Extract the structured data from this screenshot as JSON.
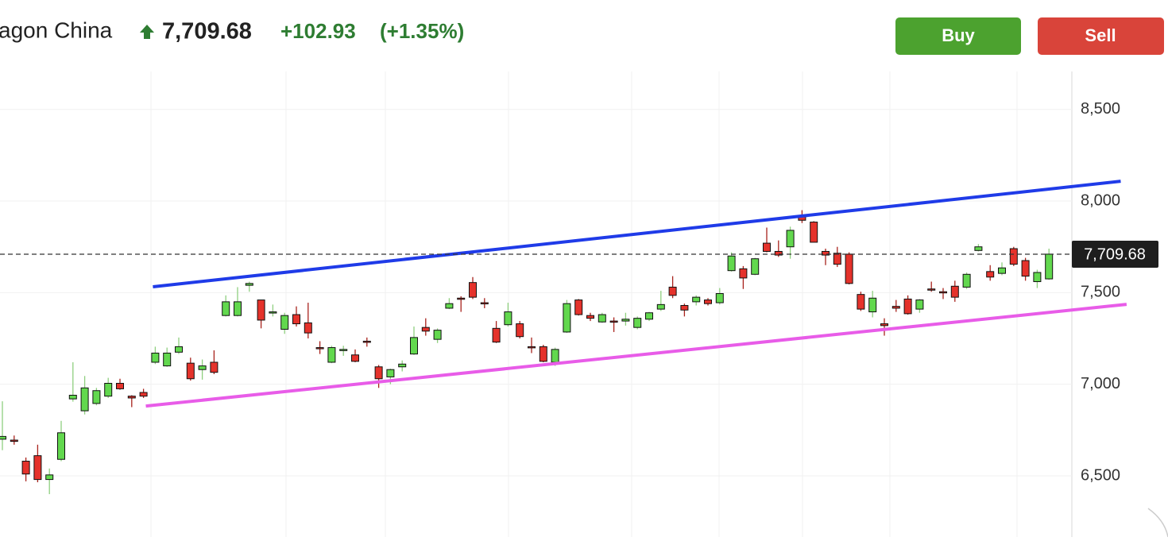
{
  "header": {
    "name": "agon China",
    "change": "+102.93",
    "change_pct": "(+1.35%)",
    "buy": "Buy",
    "sell": "Sell"
  },
  "chart_data": {
    "type": "candlestick",
    "up_color": "#62d84e",
    "down_color": "#e5322b",
    "open": [
      6700,
      6695,
      6580,
      6610,
      6480,
      6590,
      6920,
      6855,
      6895,
      6935,
      7005,
      6935,
      6955,
      7120,
      7100,
      7175,
      7115,
      7080,
      7120,
      7375,
      7375,
      7540,
      7460,
      7390,
      7300,
      7380,
      7335,
      7200,
      7120,
      7185,
      7160,
      7235,
      7095,
      7040,
      7095,
      7165,
      7310,
      7245,
      7415,
      7470,
      7555,
      7445,
      7305,
      7325,
      7330,
      7205,
      7205,
      7120,
      7285,
      7460,
      7375,
      7340,
      7345,
      7345,
      7310,
      7355,
      7410,
      7530,
      7430,
      7450,
      7460,
      7445,
      7620,
      7630,
      7600,
      7770,
      7725,
      7750,
      7915,
      7885,
      7725,
      7715,
      7710,
      7490,
      7395,
      7330,
      7425,
      7465,
      7410,
      7520,
      7505,
      7535,
      7530,
      7730,
      7615,
      7605,
      7740,
      7675,
      7560,
      7575
    ],
    "close": [
      6715,
      6688,
      6510,
      6480,
      6505,
      6735,
      6940,
      6980,
      6965,
      7005,
      6975,
      6925,
      6935,
      7170,
      7170,
      7205,
      7030,
      7100,
      7065,
      7450,
      7450,
      7550,
      7350,
      7395,
      7375,
      7330,
      7280,
      7195,
      7200,
      7190,
      7125,
      7230,
      7030,
      7080,
      7110,
      7255,
      7290,
      7295,
      7440,
      7465,
      7475,
      7440,
      7230,
      7395,
      7260,
      7200,
      7125,
      7190,
      7440,
      7380,
      7360,
      7380,
      7340,
      7355,
      7360,
      7390,
      7435,
      7485,
      7405,
      7475,
      7440,
      7495,
      7700,
      7580,
      7685,
      7725,
      7705,
      7840,
      7895,
      7775,
      7705,
      7655,
      7550,
      7410,
      7470,
      7320,
      7415,
      7385,
      7460,
      7515,
      7500,
      7475,
      7600,
      7750,
      7585,
      7635,
      7655,
      7590,
      7610,
      7710
    ],
    "high": [
      6907,
      6720,
      6600,
      6670,
      6540,
      6800,
      7120,
      7045,
      6980,
      7035,
      7030,
      6940,
      6975,
      7205,
      7200,
      7255,
      7145,
      7135,
      7185,
      7485,
      7530,
      7560,
      7460,
      7435,
      7390,
      7425,
      7445,
      7235,
      7210,
      7210,
      7190,
      7255,
      7105,
      7085,
      7130,
      7315,
      7360,
      7305,
      7470,
      7480,
      7585,
      7470,
      7345,
      7445,
      7345,
      7255,
      7215,
      7200,
      7460,
      7465,
      7390,
      7390,
      7365,
      7390,
      7370,
      7395,
      7510,
      7590,
      7440,
      7485,
      7470,
      7525,
      7720,
      7645,
      7690,
      7855,
      7785,
      7860,
      7950,
      7890,
      7740,
      7750,
      7720,
      7505,
      7510,
      7360,
      7460,
      7485,
      7465,
      7560,
      7525,
      7565,
      7610,
      7765,
      7650,
      7665,
      7750,
      7690,
      7625,
      7740
    ],
    "low": [
      6640,
      6670,
      6470,
      6465,
      6400,
      6580,
      6905,
      6835,
      6885,
      6925,
      6970,
      6875,
      6925,
      7110,
      7095,
      7165,
      7020,
      7025,
      7055,
      7370,
      7370,
      7505,
      7305,
      7370,
      7275,
      7315,
      7250,
      7165,
      7115,
      7155,
      7120,
      7205,
      6980,
      7000,
      7070,
      7160,
      7265,
      7225,
      7410,
      7395,
      7465,
      7415,
      7225,
      7315,
      7250,
      7170,
      7120,
      7100,
      7280,
      7375,
      7345,
      7335,
      7285,
      7320,
      7300,
      7345,
      7400,
      7470,
      7370,
      7430,
      7430,
      7435,
      7615,
      7520,
      7595,
      7720,
      7695,
      7685,
      7880,
      7775,
      7650,
      7640,
      7545,
      7400,
      7365,
      7265,
      7395,
      7380,
      7390,
      7505,
      7465,
      7450,
      7520,
      7725,
      7565,
      7595,
      7645,
      7565,
      7525,
      7570
    ],
    "trendlines": [
      {
        "color": "#1f3be8",
        "x": [
          12.8,
          95.1
        ],
        "values": [
          7532,
          8108
        ]
      },
      {
        "color": "#e85ce8",
        "x": [
          12.2,
          95.6
        ],
        "values": [
          6881,
          7436
        ]
      }
    ],
    "last_price": {
      "value": 7709.68,
      "label": "7,709.68"
    },
    "ylim": [
      6166,
      8707
    ],
    "yticks": [
      {
        "value": 6500,
        "label": "6,500"
      },
      {
        "value": 7000,
        "label": "7,000"
      },
      {
        "value": 7500,
        "label": "7,500"
      },
      {
        "value": 8000,
        "label": "8,000"
      },
      {
        "value": 8500,
        "label": "8,500"
      }
    ],
    "grid": true
  }
}
